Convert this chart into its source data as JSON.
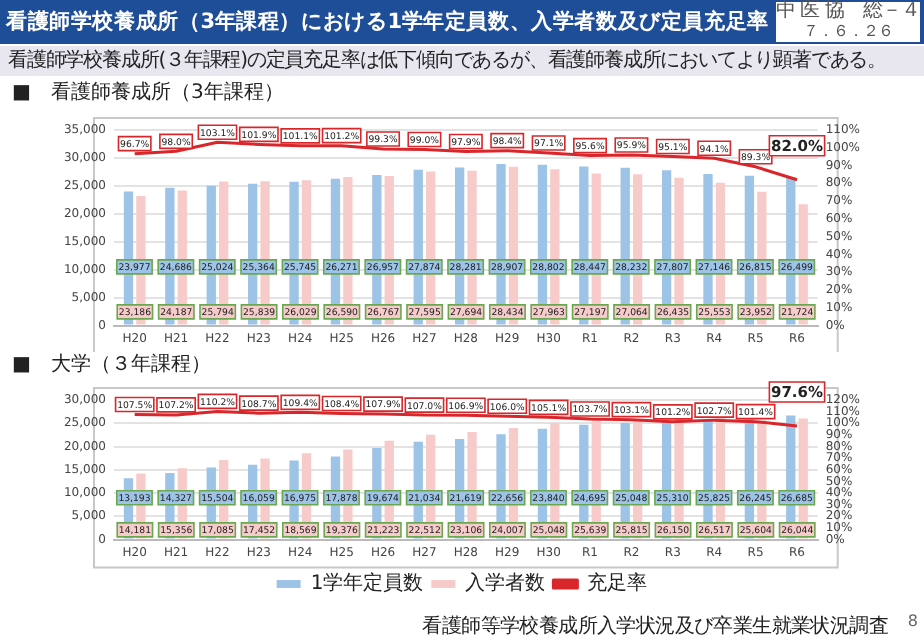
{
  "chart_data": [
    {
      "type": "bar",
      "title": "■　看護師養成所（3年課程）",
      "annotations": [
        "看護師学校養成所（3年課程）における1学年定員数、入学者数及び定員充足率",
        "看護師学校養成所(３年課程)の定員充足率は低下傾向であるが、看護師養成所においてより顕著である。",
        "中 医 協　総－４",
        "７．６．２６"
      ],
      "categories": [
        "H20",
        "H21",
        "H22",
        "H23",
        "H24",
        "H25",
        "H26",
        "H27",
        "H28",
        "H29",
        "H30",
        "R1",
        "R2",
        "R3",
        "R4",
        "R5",
        "R6"
      ],
      "series": [
        {
          "color": "#9dc3e6",
          "values": [
            23977,
            24686,
            25024,
            25364,
            25745,
            26271,
            26957,
            27874,
            28281,
            28907,
            28802,
            28447,
            28232,
            27807,
            27146,
            26815,
            26499
          ],
          "value_labels": [
            "23,977",
            "24,686",
            "25,024",
            "25,364",
            "25,745",
            "26,271",
            "26,957",
            "27,874",
            "28,281",
            "28,907",
            "28,802",
            "28,447",
            "28,232",
            "27,807",
            "27,146",
            "26,815",
            "26,499"
          ]
        },
        {
          "color": "#f8cbcb",
          "values": [
            23186,
            24187,
            25794,
            25839,
            26029,
            26590,
            26767,
            27595,
            27694,
            28434,
            27963,
            27197,
            27064,
            26435,
            25553,
            23952,
            21724
          ],
          "value_labels": [
            "23,186",
            "24,187",
            "25,794",
            "25,839",
            "26,029",
            "26,590",
            "26,767",
            "27,595",
            "27,694",
            "28,434",
            "27,963",
            "27,197",
            "27,064",
            "26,435",
            "25,553",
            "23,952",
            "21,724"
          ]
        },
        {
          "type": "line",
          "axis": "y2",
          "color": "#d9262b",
          "values": [
            96.7,
            98.0,
            103.1,
            101.9,
            101.1,
            101.2,
            99.3,
            99.0,
            97.9,
            98.4,
            97.1,
            95.6,
            95.9,
            95.1,
            94.1,
            89.3,
            82.0
          ],
          "value_labels": [
            "96.7%",
            "98.0%",
            "103.1%",
            "101.9%",
            "101.1%",
            "101.2%",
            "99.3%",
            "99.0%",
            "97.9%",
            "98.4%",
            "97.1%",
            "95.6%",
            "95.9%",
            "95.1%",
            "94.1%",
            "89.3%",
            "82.0%"
          ]
        }
      ],
      "ylim": [
        0,
        35000
      ],
      "yticks": [
        {
          "value": 0,
          "label": "0"
        },
        {
          "value": 5000,
          "label": "5,000"
        },
        {
          "value": 10000,
          "label": "10,000"
        },
        {
          "value": 15000,
          "label": "15,000"
        },
        {
          "value": 20000,
          "label": "20,000"
        },
        {
          "value": 25000,
          "label": "25,000"
        },
        {
          "value": 30000,
          "label": "30,000"
        },
        {
          "value": 35000,
          "label": "35,000"
        }
      ],
      "y2lim": [
        0,
        110
      ],
      "y2ticks": [
        {
          "value": 0,
          "label": "0%"
        },
        {
          "value": 10,
          "label": "10%"
        },
        {
          "value": 20,
          "label": "20%"
        },
        {
          "value": 30,
          "label": "30%"
        },
        {
          "value": 40,
          "label": "40%"
        },
        {
          "value": 50,
          "label": "50%"
        },
        {
          "value": 60,
          "label": "60%"
        },
        {
          "value": 70,
          "label": "70%"
        },
        {
          "value": 80,
          "label": "80%"
        },
        {
          "value": 90,
          "label": "90%"
        },
        {
          "value": 100,
          "label": "100%"
        },
        {
          "value": 110,
          "label": "110%"
        }
      ],
      "grid": "y",
      "legend": false,
      "marker": "none"
    },
    {
      "type": "bar",
      "title": "■　大学（３年課程）",
      "annotations": [
        "看護師等学校養成所入学状況及び卒業生就業状況調査",
        "8"
      ],
      "categories": [
        "H20",
        "H21",
        "H22",
        "H23",
        "H24",
        "H25",
        "H26",
        "H27",
        "H28",
        "H29",
        "H30",
        "R1",
        "R2",
        "R3",
        "R4",
        "R5",
        "R6"
      ],
      "series": [
        {
          "name": "1学年定員数",
          "color": "#9dc3e6",
          "values": [
            13193,
            14327,
            15504,
            16059,
            16975,
            17878,
            19674,
            21034,
            21619,
            22656,
            23840,
            24695,
            25048,
            25310,
            25825,
            26245,
            26685
          ],
          "value_labels": [
            "13,193",
            "14,327",
            "15,504",
            "16,059",
            "16,975",
            "17,878",
            "19,674",
            "21,034",
            "21,619",
            "22,656",
            "23,840",
            "24,695",
            "25,048",
            "25,310",
            "25,825",
            "26,245",
            "26,685"
          ]
        },
        {
          "name": "入学者数",
          "color": "#f8cbcb",
          "values": [
            14181,
            15356,
            17085,
            17452,
            18569,
            19376,
            21223,
            22512,
            23106,
            24007,
            25048,
            25639,
            25815,
            26150,
            26517,
            25604,
            26044
          ],
          "value_labels": [
            "14,181",
            "15,356",
            "17,085",
            "17,452",
            "18,569",
            "19,376",
            "21,223",
            "22,512",
            "23,106",
            "24,007",
            "25,048",
            "25,639",
            "25,815",
            "26,150",
            "26,517",
            "25,604",
            "26,044"
          ]
        },
        {
          "type": "line",
          "name": "充足率",
          "axis": "y2",
          "color": "#d9262b",
          "values": [
            107.5,
            107.2,
            110.2,
            108.7,
            109.4,
            108.4,
            107.9,
            107.0,
            106.9,
            106.0,
            105.1,
            103.7,
            103.1,
            101.2,
            102.7,
            101.4,
            97.6
          ],
          "value_labels": [
            "107.5%",
            "107.2%",
            "110.2%",
            "108.7%",
            "109.4%",
            "108.4%",
            "107.9%",
            "107.0%",
            "106.9%",
            "106.0%",
            "105.1%",
            "103.7%",
            "103.1%",
            "101.2%",
            "102.7%",
            "101.4%",
            "97.6%"
          ]
        }
      ],
      "ylim": [
        0,
        30000
      ],
      "yticks": [
        {
          "value": 0,
          "label": "0"
        },
        {
          "value": 5000,
          "label": "5,000"
        },
        {
          "value": 10000,
          "label": "10,000"
        },
        {
          "value": 15000,
          "label": "15,000"
        },
        {
          "value": 20000,
          "label": "20,000"
        },
        {
          "value": 25000,
          "label": "25,000"
        },
        {
          "value": 30000,
          "label": "30,000"
        }
      ],
      "y2lim": [
        0,
        120
      ],
      "y2ticks": [
        {
          "value": 0,
          "label": "0%"
        },
        {
          "value": 10,
          "label": "10%"
        },
        {
          "value": 20,
          "label": "20%"
        },
        {
          "value": 30,
          "label": "30%"
        },
        {
          "value": 40,
          "label": "40%"
        },
        {
          "value": 50,
          "label": "50%"
        },
        {
          "value": 60,
          "label": "60%"
        },
        {
          "value": 70,
          "label": "70%"
        },
        {
          "value": 80,
          "label": "80%"
        },
        {
          "value": 90,
          "label": "90%"
        },
        {
          "value": 100,
          "label": "100%"
        },
        {
          "value": 110,
          "label": "110%"
        },
        {
          "value": 120,
          "label": "120%"
        }
      ],
      "grid": "y",
      "legend": "bottom",
      "marker": "none"
    }
  ]
}
